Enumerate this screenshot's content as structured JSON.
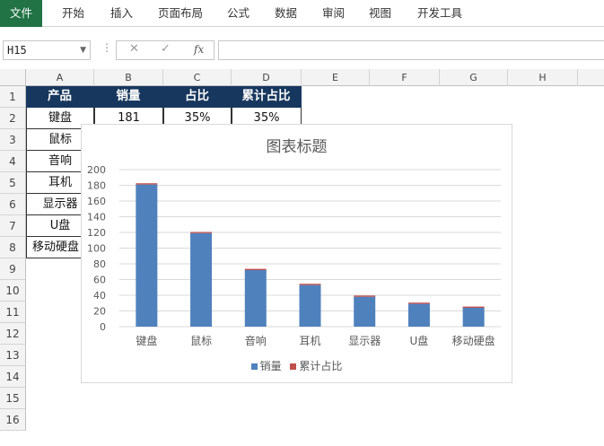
{
  "ribbon": {
    "tabs": [
      {
        "label": "文件",
        "active": true
      },
      {
        "label": "开始"
      },
      {
        "label": "插入"
      },
      {
        "label": "页面布局"
      },
      {
        "label": "公式"
      },
      {
        "label": "数据"
      },
      {
        "label": "审阅"
      },
      {
        "label": "视图"
      },
      {
        "label": "开发工具"
      }
    ]
  },
  "formula_bar": {
    "name_box": "H15",
    "cancel_icon": "✕",
    "enter_icon": "✓",
    "fx_label": "fx",
    "value": ""
  },
  "columns": [
    "A",
    "B",
    "C",
    "D",
    "E",
    "F",
    "G",
    "H"
  ],
  "rows": [
    "1",
    "2",
    "3",
    "4",
    "5",
    "6",
    "7",
    "8",
    "9",
    "10",
    "11",
    "12",
    "13",
    "14",
    "15",
    "16"
  ],
  "table": {
    "headers": [
      "产品",
      "销量",
      "占比",
      "累计占比"
    ],
    "row2": [
      "键盘",
      "181",
      "35%",
      "35%"
    ],
    "products": [
      "鼠标",
      "音响",
      "耳机",
      "显示器",
      "U盘",
      "移动硬盘"
    ]
  },
  "chart_data": {
    "type": "bar",
    "title": "图表标题",
    "categories": [
      "键盘",
      "鼠标",
      "音响",
      "耳机",
      "显示器",
      "U盘",
      "移动硬盘"
    ],
    "series": [
      {
        "name": "销量",
        "values": [
          181,
          119,
          72,
          53,
          38,
          29,
          24
        ],
        "color": "#4f81bd"
      },
      {
        "name": "累计占比",
        "values": [
          0.35,
          0.58,
          0.72,
          0.82,
          0.89,
          0.95,
          1.0
        ],
        "color": "#c0504d"
      }
    ],
    "ylim": [
      0,
      200
    ],
    "yticks": [
      "0",
      "20",
      "40",
      "60",
      "80",
      "100",
      "120",
      "140",
      "160",
      "180",
      "200"
    ],
    "stacked": true,
    "grid": true,
    "legend": "bottom"
  },
  "colors": {
    "accent": "#217346",
    "header_fill": "#17375e"
  }
}
